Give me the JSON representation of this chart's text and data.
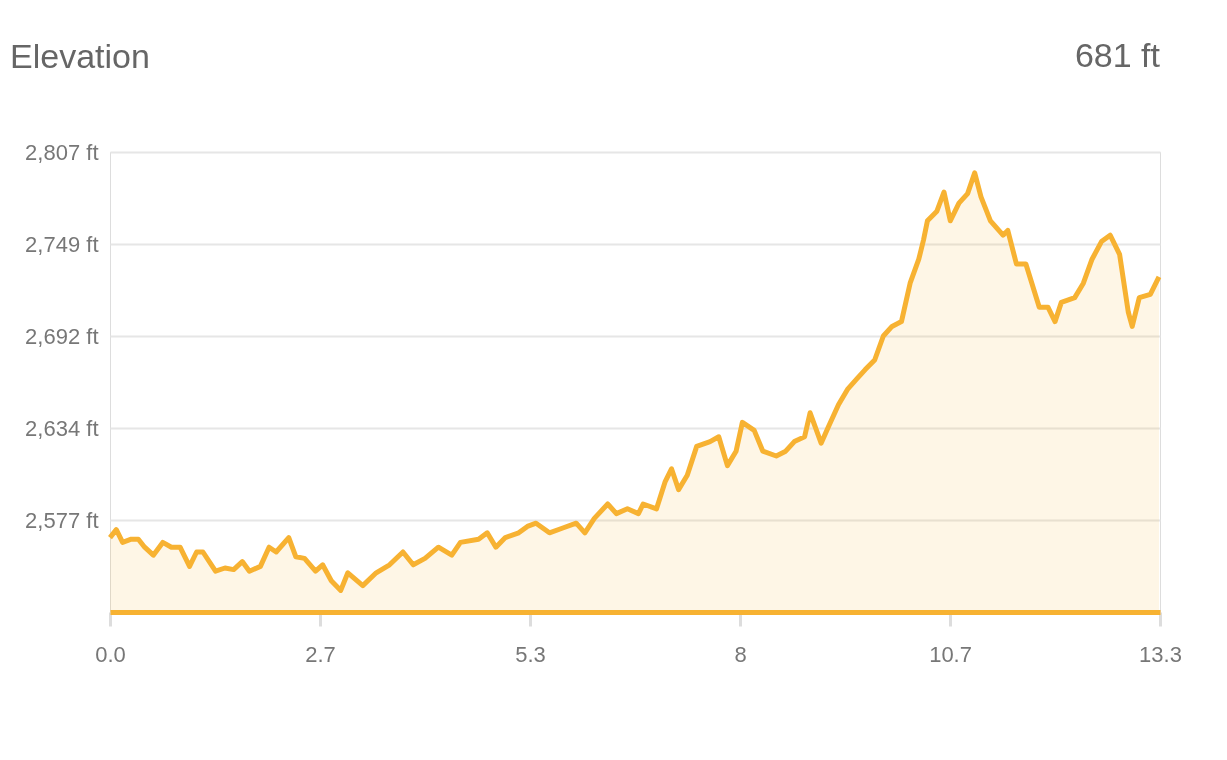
{
  "chart_data": {
    "type": "area",
    "title": "Elevation",
    "annotations": [
      "681 ft"
    ],
    "x": [
      0,
      0.08,
      0.16,
      0.27,
      0.36,
      0.44,
      0.55,
      0.67,
      0.78,
      0.89,
      1.01,
      1.1,
      1.18,
      1.34,
      1.46,
      1.57,
      1.68,
      1.77,
      1.91,
      2.02,
      2.11,
      2.27,
      2.36,
      2.47,
      2.61,
      2.7,
      2.81,
      2.93,
      3.02,
      3.21,
      3.38,
      3.55,
      3.72,
      3.85,
      4.0,
      4.17,
      4.34,
      4.45,
      4.68,
      4.79,
      4.9,
      5.02,
      5.19,
      5.3,
      5.41,
      5.58,
      5.75,
      5.92,
      6.03,
      6.15,
      6.32,
      6.43,
      6.57,
      6.71,
      6.77,
      6.94,
      7.05,
      7.13,
      7.22,
      7.33,
      7.45,
      7.62,
      7.73,
      7.84,
      7.95,
      8.03,
      8.18,
      8.29,
      8.46,
      8.58,
      8.69,
      8.82,
      8.89,
      9.03,
      9.12,
      9.25,
      9.37,
      9.48,
      9.59,
      9.71,
      9.82,
      9.93,
      10.05,
      10.16,
      10.27,
      10.33,
      10.38,
      10.5,
      10.59,
      10.67,
      10.78,
      10.89,
      10.98,
      11.06,
      11.18,
      11.34,
      11.4,
      11.51,
      11.63,
      11.8,
      11.91,
      12.0,
      12.08,
      12.25,
      12.36,
      12.47,
      12.59,
      12.7,
      12.82,
      12.93,
      12.98,
      13.07,
      13.21,
      13.32
    ],
    "series": [
      {
        "color": "#f7b232",
        "values": [
          2566,
          2571,
          2563,
          2565,
          2565,
          2560,
          2555,
          2563,
          2560,
          2560,
          2548,
          2557,
          2557,
          2545,
          2547,
          2546,
          2551,
          2545,
          2548,
          2560,
          2557,
          2566,
          2554,
          2553,
          2545,
          2549,
          2539,
          2533,
          2544,
          2536,
          2544,
          2549,
          2557,
          2549,
          2553,
          2560,
          2555,
          2563,
          2565,
          2569,
          2560,
          2566,
          2569,
          2573,
          2575,
          2569,
          2572,
          2575,
          2569,
          2578,
          2587,
          2581,
          2584,
          2581,
          2587,
          2584,
          2601,
          2609,
          2596,
          2605,
          2623,
          2626,
          2629,
          2611,
          2620,
          2638,
          2633,
          2620,
          2617,
          2620,
          2626,
          2629,
          2644,
          2625,
          2635,
          2649,
          2659,
          2665,
          2671,
          2677,
          2692,
          2698,
          2701,
          2725,
          2740,
          2752,
          2764,
          2770,
          2782,
          2764,
          2775,
          2781,
          2794,
          2779,
          2764,
          2755,
          2758,
          2737,
          2737,
          2710,
          2710,
          2701,
          2713,
          2716,
          2725,
          2740,
          2751,
          2755,
          2743,
          2707,
          2698,
          2716,
          2718,
          2729
        ]
      }
    ],
    "xlim": [
      0,
      13.333
    ],
    "xticks": [
      {
        "value": 0,
        "label": "0.0"
      },
      {
        "value": 2.667,
        "label": "2.7"
      },
      {
        "value": 5.333,
        "label": "5.3"
      },
      {
        "value": 8,
        "label": "8"
      },
      {
        "value": 10.667,
        "label": "10.7"
      },
      {
        "value": 13.333,
        "label": "13.3"
      }
    ],
    "ylim": [
      2519.5,
      2807
    ],
    "yticks": [
      {
        "value": 2577,
        "label": "2,577 ft"
      },
      {
        "value": 2634.5,
        "label": "2,634 ft"
      },
      {
        "value": 2692,
        "label": "2,692 ft"
      },
      {
        "value": 2749.5,
        "label": "2,749 ft"
      },
      {
        "value": 2807,
        "label": "2,807 ft"
      }
    ],
    "grid": "y",
    "legend": false,
    "marker": "none",
    "line_style": "solid"
  }
}
